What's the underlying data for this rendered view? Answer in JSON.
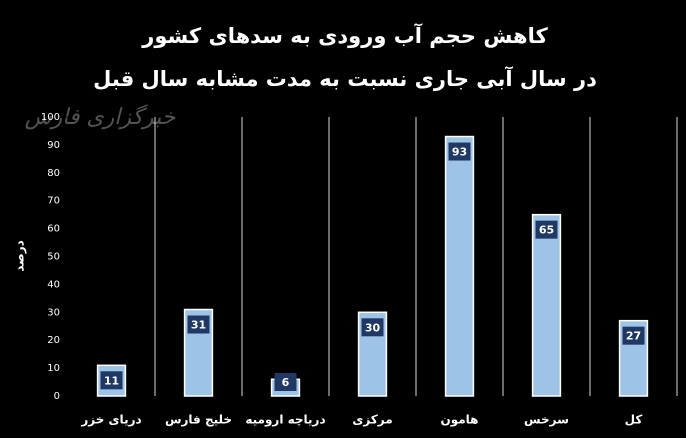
{
  "chart_data": {
    "type": "bar",
    "title": "کاهش حجم آب ورودی به سدهای کشور",
    "subtitle": "در سال آبی جاری نسبت به مدت مشابه سال قبل",
    "watermark": "خبرگزاری فارس",
    "y_label": "درصد",
    "categories": [
      "دریای خزر",
      "خلیج فارس",
      "دریاچه ارومیه",
      "مرکزی",
      "هامون",
      "سرخس",
      "کل"
    ],
    "values": [
      11,
      31,
      6,
      30,
      93,
      65,
      27
    ],
    "color": "#9dc3e6",
    "label_color": "#1f3864",
    "ylim": [
      0,
      100
    ],
    "yticks": [
      0,
      10,
      20,
      30,
      40,
      50,
      60,
      70,
      80,
      90,
      100
    ],
    "grid": true
  }
}
